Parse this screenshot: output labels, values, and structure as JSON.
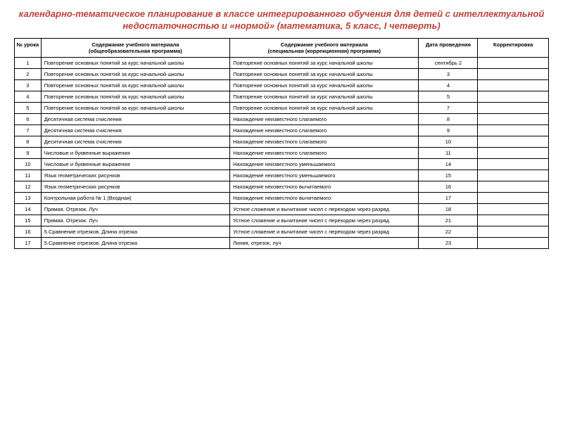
{
  "title": "календарно-тематическое планирование в классе интегрированного обучения для детей с интеллектуальной недостаточностью и «нормой» (математика, 5 класс, I четверть)",
  "columns": {
    "c1": "№ урока",
    "c2_l1": "Содержание учебного материала",
    "c2_l2": "(общеобразовательная программа)",
    "c3_l1": "Содержание учебного материала",
    "c3_l2": "(специальная (коррекционная) программа)",
    "c4": "Дата проведения",
    "c5": "Корректировка"
  },
  "rows": [
    {
      "n": "1",
      "a": "Повторение основных понятий за курс начальной школы",
      "b": "Повторение основных понятий за курс начальной школы",
      "d": "сентябрь 2"
    },
    {
      "n": "2",
      "a": "Повторение основных понятий за курс начальной школы",
      "b": "Повторение основных понятий за курс начальной школы",
      "d": "3"
    },
    {
      "n": "3",
      "a": "Повторение основных понятий за курс начальной школы",
      "b": "Повторение основных понятий за курс начальной школы",
      "d": "4"
    },
    {
      "n": "4",
      "a": "Повторение основных понятий за курс начальной школы",
      "b": "Повторение основных понятий за курс начальной школы",
      "d": "5"
    },
    {
      "n": "5",
      "a": "Повторение основных понятий за курс начальной школы",
      "b": "Повторение основных понятий за курс начальной школы",
      "d": "7"
    },
    {
      "n": "6",
      "a": "Десятичная система счисления",
      "b": "Нахождение неизвестного слагаемого",
      "d": "8"
    },
    {
      "n": "7",
      "a": "Десятичная система счисления",
      "b": "Нахождение неизвестного слагаемого",
      "d": "9"
    },
    {
      "n": "8",
      "a": "Десятичная система счисления",
      "b": "Нахождение неизвестного слагаемого",
      "d": "10"
    },
    {
      "n": "9",
      "a": "Числовые и буквенные выражения",
      "b": "Нахождение неизвестного слагаемого",
      "d": "11"
    },
    {
      "n": "10",
      "a": "Числовые и буквенные выражения",
      "b": "Нахождение неизвестного уменьшаемого",
      "d": "14"
    },
    {
      "n": "11",
      "a": "Язык геометрических рисунков",
      "b": "Нахождение неизвестного уменьшаемого",
      "d": "15"
    },
    {
      "n": "12",
      "a": "Язык геометрических рисунков",
      "b": "Нахождение неизвестного вычитаемого",
      "d": "16"
    },
    {
      "n": "13",
      "a": "Контрольная работа № 1 (Входная)",
      "b": "Нахождение неизвестного вычитаемого",
      "d": "17"
    },
    {
      "n": "14",
      "a": "Прямая. Отрезок. Луч",
      "b": "Устное сложение и вычитание чисел с переходом через разряд",
      "d": "18"
    },
    {
      "n": "15",
      "a": "Прямая. Отрезок. Луч",
      "b": "Устное сложение и вычитание чисел с переходом через разряд",
      "d": "21"
    },
    {
      "n": "16",
      "a": "5.Сравнение отрезков. Длина отрезка",
      "b": "Устное сложение и вычитание чисел с переходом через разряд",
      "d": "22"
    },
    {
      "n": "17",
      "a": "5.Сравнение отрезков. Длина отрезка",
      "b": "Линия, отрезок, луч",
      "d": "23"
    }
  ]
}
